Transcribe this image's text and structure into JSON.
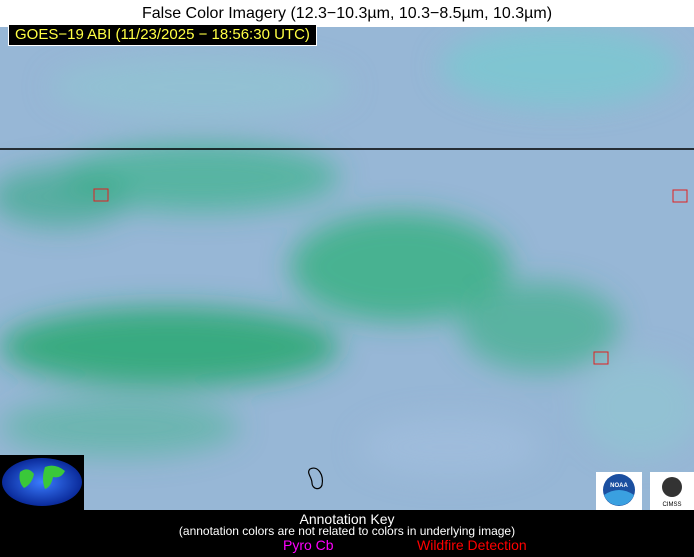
{
  "header": {
    "title": "False Color Imagery (12.3−10.3µm, 10.3−8.5µm, 10.3µm)",
    "timestamp": "GOES−19 ABI (11/23/2025 − 18:56:30 UTC)"
  },
  "logos": [
    "NOAA",
    "CIMSS"
  ],
  "annotation_key": {
    "title": "Annotation Key",
    "note": "(annotation colors are not related to colors in underlying image)",
    "items": [
      "Pyro Cb",
      "Wildfire Detection"
    ]
  }
}
